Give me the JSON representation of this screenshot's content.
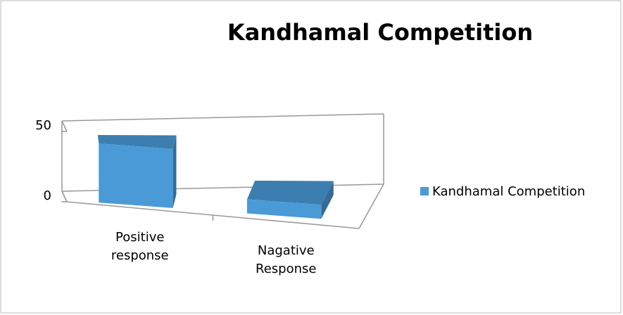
{
  "chart_data": {
    "type": "bar3d",
    "title": "Kandhamal Competition",
    "categories": [
      "Positive response",
      "Nagative Response"
    ],
    "series": [
      {
        "name": "Kandhamal Competition",
        "color": "#4a9ad8",
        "values": [
          42,
          10
        ]
      }
    ],
    "ylim": [
      0,
      50
    ],
    "yticks": [
      0,
      50
    ],
    "grid": true,
    "legend": "right"
  }
}
